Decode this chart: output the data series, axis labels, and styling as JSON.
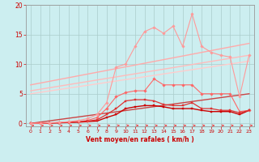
{
  "xlabel": "Vent moyen/en rafales ( km/h )",
  "background_color": "#cceef0",
  "grid_color": "#aacccc",
  "x_values": [
    0,
    1,
    2,
    3,
    4,
    5,
    6,
    7,
    8,
    9,
    10,
    11,
    12,
    13,
    14,
    15,
    16,
    17,
    18,
    19,
    20,
    21,
    22,
    23
  ],
  "ylim": [
    -0.5,
    20
  ],
  "xlim": [
    -0.5,
    23.5
  ],
  "yticks": [
    0,
    5,
    10,
    15,
    20
  ],
  "xticks": [
    0,
    1,
    2,
    3,
    4,
    5,
    6,
    7,
    8,
    9,
    10,
    11,
    12,
    13,
    14,
    15,
    16,
    17,
    18,
    19,
    20,
    21,
    22,
    23
  ],
  "line_pink_y": [
    0.0,
    0.05,
    0.1,
    0.2,
    0.3,
    0.5,
    0.8,
    1.5,
    3.5,
    9.5,
    10.0,
    13.0,
    15.5,
    16.2,
    15.2,
    16.4,
    13.0,
    18.5,
    13.0,
    12.0,
    11.5,
    11.2,
    4.5,
    11.5
  ],
  "line_pink_color": "#ff9999",
  "line_med_y": [
    0.0,
    0.05,
    0.1,
    0.15,
    0.2,
    0.3,
    0.5,
    1.0,
    2.5,
    4.5,
    5.2,
    5.5,
    5.5,
    7.5,
    6.5,
    6.5,
    6.5,
    6.5,
    5.0,
    5.0,
    5.0,
    5.0,
    2.0,
    2.2
  ],
  "line_med_color": "#ff6666",
  "line_dark1_y": [
    0.0,
    0.0,
    0.05,
    0.1,
    0.2,
    0.3,
    0.4,
    0.6,
    1.5,
    2.5,
    3.8,
    4.0,
    4.0,
    3.8,
    3.2,
    3.0,
    3.0,
    3.5,
    2.5,
    2.5,
    2.2,
    2.2,
    1.8,
    2.2
  ],
  "line_dark1_color": "#dd3333",
  "line_dark2_y": [
    0.0,
    0.0,
    0.05,
    0.1,
    0.15,
    0.2,
    0.3,
    0.4,
    1.0,
    1.5,
    2.5,
    2.8,
    3.0,
    3.0,
    2.8,
    2.5,
    2.5,
    2.5,
    2.2,
    2.0,
    2.0,
    2.0,
    1.5,
    2.2
  ],
  "line_dark2_color": "#cc0000",
  "trend_high_color": "#ffaaaa",
  "trend_high_start": 6.5,
  "trend_high_end": 13.5,
  "trend_mid_color": "#ffbbbb",
  "trend_mid_start": 5.5,
  "trend_mid_end": 11.5,
  "trend_low_color": "#ffcccc",
  "trend_low_start": 5.0,
  "trend_low_end": 10.5,
  "trend_dark_color": "#cc4444",
  "trend_dark_start": 0.0,
  "trend_dark_end": 5.0,
  "arrow_color": "#ee4444",
  "tick_color": "#cc0000",
  "label_color": "#cc0000",
  "axis_color": "#999999"
}
